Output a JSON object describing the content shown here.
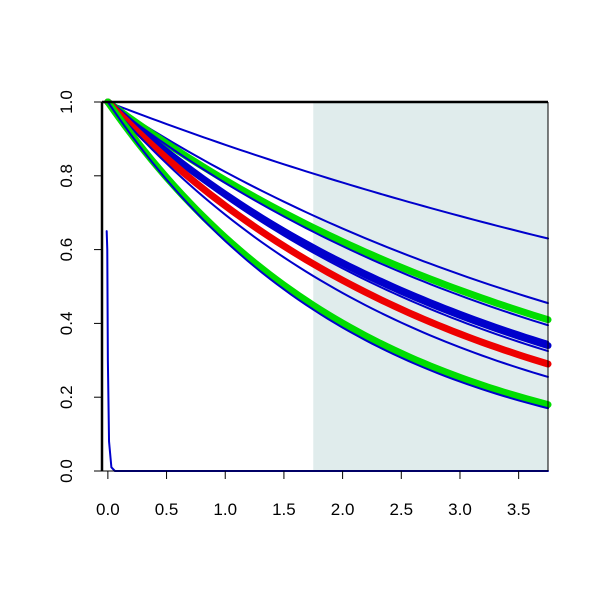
{
  "chart_data": {
    "type": "line",
    "title": "",
    "xlabel": "",
    "ylabel": "",
    "xlim": [
      -0.05,
      3.75
    ],
    "ylim": [
      0.0,
      1.0
    ],
    "x_ticks": [
      0.0,
      0.5,
      1.0,
      1.5,
      2.0,
      2.5,
      3.0,
      3.5
    ],
    "x_tick_labels": [
      "0.0",
      "0.5",
      "1.0",
      "1.5",
      "2.0",
      "2.5",
      "3.0",
      "3.5"
    ],
    "y_ticks": [
      0.0,
      0.2,
      0.4,
      0.6,
      0.8,
      1.0
    ],
    "y_tick_labels": [
      "0.0",
      "0.2",
      "0.4",
      "0.6",
      "0.8",
      "1.0"
    ],
    "grid": false,
    "shaded_region": {
      "x_start": 1.75,
      "x_end": 3.75,
      "color": "#e0ecec"
    },
    "colors": {
      "blue": "#0000cc",
      "green": "#00dd00",
      "red": "#ee0000"
    },
    "series": [
      {
        "color": "blue",
        "weight": "thin",
        "x": [
          0,
          3.75
        ],
        "y": [
          1.0,
          0.63
        ],
        "shape": "exponential"
      },
      {
        "color": "blue",
        "weight": "thin",
        "x": [
          0,
          3.75
        ],
        "y": [
          1.0,
          0.455
        ],
        "shape": "exponential"
      },
      {
        "color": "green",
        "weight": "thick",
        "x": [
          0,
          3.75
        ],
        "y": [
          1.0,
          0.41
        ],
        "shape": "exponential"
      },
      {
        "color": "blue",
        "weight": "thin",
        "x": [
          0,
          3.75
        ],
        "y": [
          1.0,
          0.395
        ],
        "shape": "exponential"
      },
      {
        "color": "blue",
        "weight": "thin",
        "x": [
          0,
          3.75
        ],
        "y": [
          1.0,
          0.35
        ],
        "shape": "exponential"
      },
      {
        "color": "blue",
        "weight": "thick",
        "x": [
          0,
          3.75
        ],
        "y": [
          1.0,
          0.34
        ],
        "shape": "exponential"
      },
      {
        "color": "blue",
        "weight": "thin",
        "x": [
          0,
          3.75
        ],
        "y": [
          1.0,
          0.325
        ],
        "shape": "exponential"
      },
      {
        "color": "red",
        "weight": "thick",
        "x": [
          0,
          3.75
        ],
        "y": [
          1.0,
          0.29
        ],
        "shape": "exponential"
      },
      {
        "color": "blue",
        "weight": "thin",
        "x": [
          0,
          3.75
        ],
        "y": [
          1.0,
          0.255
        ],
        "shape": "exponential"
      },
      {
        "color": "green",
        "weight": "thick",
        "x": [
          0,
          3.75
        ],
        "y": [
          1.0,
          0.18
        ],
        "shape": "exponential"
      },
      {
        "color": "blue",
        "weight": "thin",
        "x": [
          0,
          3.75
        ],
        "y": [
          1.0,
          0.17
        ],
        "shape": "exponential"
      },
      {
        "color": "blue",
        "weight": "thin",
        "x": [
          -0.01,
          -0.005,
          0.0,
          0.01,
          0.03,
          0.06,
          3.75
        ],
        "y": [
          0.65,
          0.6,
          0.3,
          0.08,
          0.01,
          0.0,
          0.0
        ],
        "shape": "polyline"
      }
    ]
  }
}
